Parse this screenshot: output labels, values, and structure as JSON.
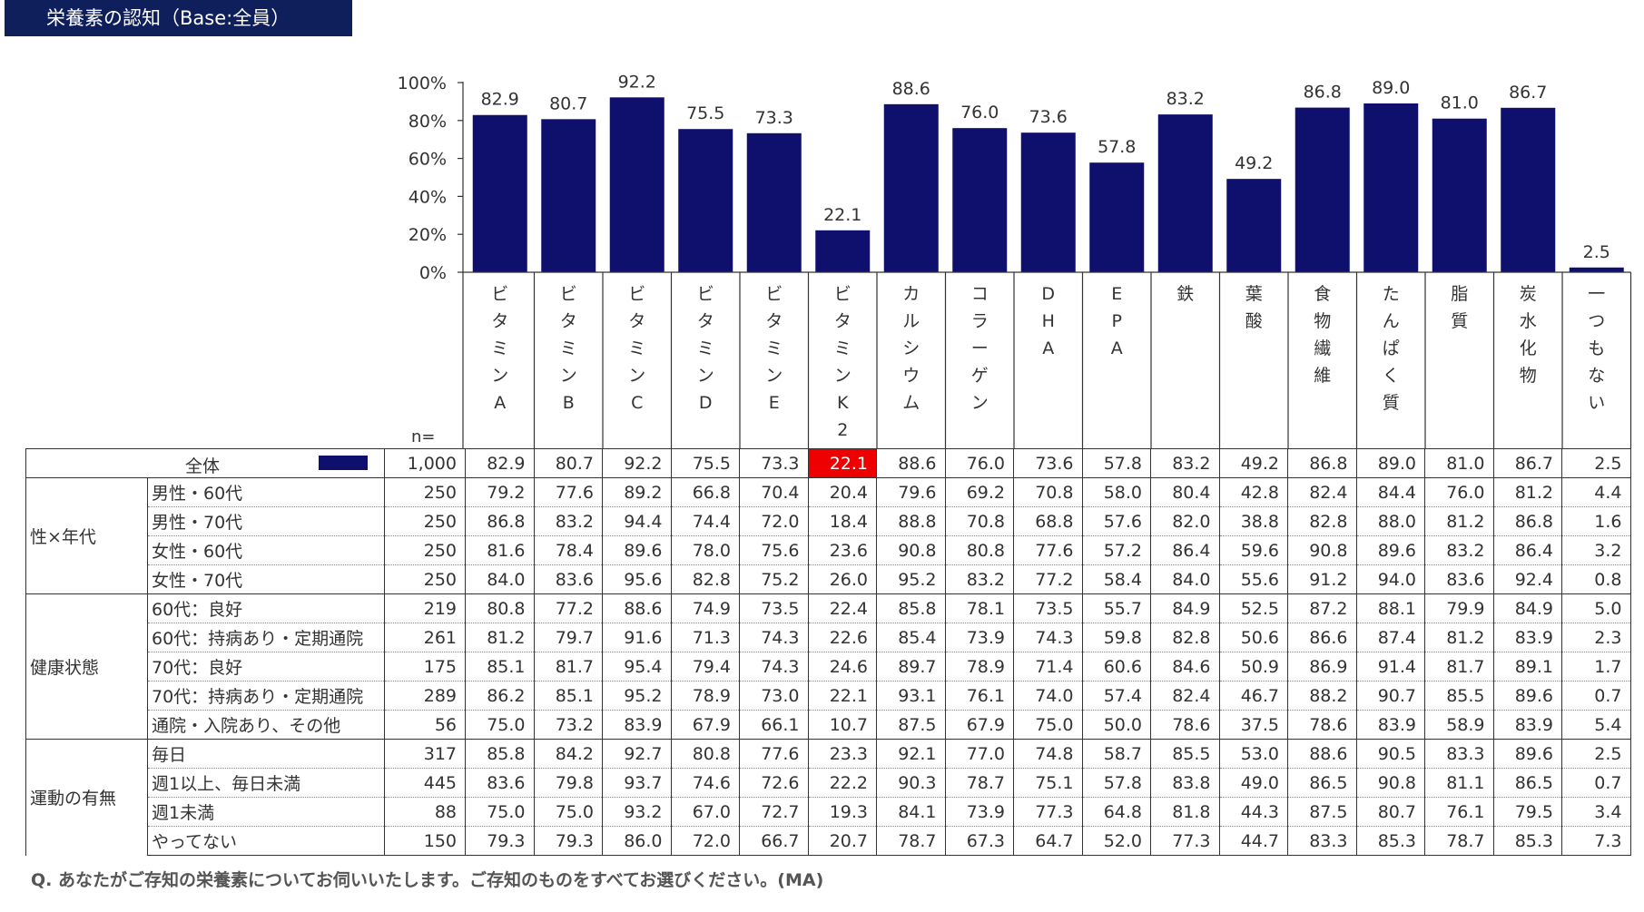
{
  "title": "栄養素の認知（Base:全員）",
  "question": "Q.  あなたがご存知の栄養素についてお伺いいたします。ご存知のものをすべてお選びください。(MA)",
  "colors": {
    "bar": "#0f0f6e",
    "title_bg": "#0f1f5c",
    "highlight": "#ee0000"
  },
  "chart_data": {
    "type": "bar",
    "categories": [
      "ビタミンA",
      "ビタミンB",
      "ビタミンC",
      "ビタミンD",
      "ビタミンE",
      "ビタミンK2",
      "カルシウム",
      "コラーゲン",
      "DHA",
      "EPA",
      "鉄",
      "葉酸",
      "食物繊維",
      "たんぱく質",
      "脂質",
      "炭水化物",
      "一つもない"
    ],
    "category_labels": [
      [
        "ビ",
        "タ",
        "ミ",
        "ン",
        "A"
      ],
      [
        "ビ",
        "タ",
        "ミ",
        "ン",
        "B"
      ],
      [
        "ビ",
        "タ",
        "ミ",
        "ン",
        "C"
      ],
      [
        "ビ",
        "タ",
        "ミ",
        "ン",
        "D"
      ],
      [
        "ビ",
        "タ",
        "ミ",
        "ン",
        "E"
      ],
      [
        "ビ",
        "タ",
        "ミ",
        "ン",
        "K",
        "2"
      ],
      [
        "カ",
        "ル",
        "シ",
        "ウ",
        "ム"
      ],
      [
        "コ",
        "ラ",
        "ー",
        "ゲ",
        "ン"
      ],
      [
        "D",
        "H",
        "A"
      ],
      [
        "E",
        "P",
        "A"
      ],
      [
        "鉄"
      ],
      [
        "葉",
        "酸"
      ],
      [
        "食",
        "物",
        "繊",
        "維"
      ],
      [
        "た",
        "ん",
        "ぱ",
        "く",
        "質"
      ],
      [
        "脂",
        "質"
      ],
      [
        "炭",
        "水",
        "化",
        "物"
      ],
      [
        "一",
        "つ",
        "も",
        "な",
        "い"
      ]
    ],
    "values": [
      82.9,
      80.7,
      92.2,
      75.5,
      73.3,
      22.1,
      88.6,
      76.0,
      73.6,
      57.8,
      83.2,
      49.2,
      86.8,
      89.0,
      81.0,
      86.7,
      2.5
    ],
    "value_labels": [
      "82.9",
      "80.7",
      "92.2",
      "75.5",
      "73.3",
      "22.1",
      "88.6",
      "76.0",
      "73.6",
      "57.8",
      "83.2",
      "49.2",
      "86.8",
      "89.0",
      "81.0",
      "86.7",
      "2.5"
    ],
    "ylim": [
      0,
      100
    ],
    "yticks": [
      "0%",
      "20%",
      "40%",
      "60%",
      "80%",
      "100%"
    ],
    "n_label": "n="
  },
  "table": {
    "overall": {
      "label": "全体",
      "n": "1,000",
      "values": [
        "82.9",
        "80.7",
        "92.2",
        "75.5",
        "73.3",
        "22.1",
        "88.6",
        "76.0",
        "73.6",
        "57.8",
        "83.2",
        "49.2",
        "86.8",
        "89.0",
        "81.0",
        "86.7",
        "2.5"
      ],
      "highlight_index": 5
    },
    "groups": [
      {
        "label": "性×年代",
        "rows": [
          {
            "label": "男性・60代",
            "n": "250",
            "values": [
              "79.2",
              "77.6",
              "89.2",
              "66.8",
              "70.4",
              "20.4",
              "79.6",
              "69.2",
              "70.8",
              "58.0",
              "80.4",
              "42.8",
              "82.4",
              "84.4",
              "76.0",
              "81.2",
              "4.4"
            ]
          },
          {
            "label": "男性・70代",
            "n": "250",
            "values": [
              "86.8",
              "83.2",
              "94.4",
              "74.4",
              "72.0",
              "18.4",
              "88.8",
              "70.8",
              "68.8",
              "57.6",
              "82.0",
              "38.8",
              "82.8",
              "88.0",
              "81.2",
              "86.8",
              "1.6"
            ]
          },
          {
            "label": "女性・60代",
            "n": "250",
            "values": [
              "81.6",
              "78.4",
              "89.6",
              "78.0",
              "75.6",
              "23.6",
              "90.8",
              "80.8",
              "77.6",
              "57.2",
              "86.4",
              "59.6",
              "90.8",
              "89.6",
              "83.2",
              "86.4",
              "3.2"
            ]
          },
          {
            "label": "女性・70代",
            "n": "250",
            "values": [
              "84.0",
              "83.6",
              "95.6",
              "82.8",
              "75.2",
              "26.0",
              "95.2",
              "83.2",
              "77.2",
              "58.4",
              "84.0",
              "55.6",
              "91.2",
              "94.0",
              "83.6",
              "92.4",
              "0.8"
            ]
          }
        ]
      },
      {
        "label": "健康状態",
        "rows": [
          {
            "label": "60代：良好",
            "n": "219",
            "values": [
              "80.8",
              "77.2",
              "88.6",
              "74.9",
              "73.5",
              "22.4",
              "85.8",
              "78.1",
              "73.5",
              "55.7",
              "84.9",
              "52.5",
              "87.2",
              "88.1",
              "79.9",
              "84.9",
              "5.0"
            ]
          },
          {
            "label": "60代：持病あり・定期通院",
            "n": "261",
            "values": [
              "81.2",
              "79.7",
              "91.6",
              "71.3",
              "74.3",
              "22.6",
              "85.4",
              "73.9",
              "74.3",
              "59.8",
              "82.8",
              "50.6",
              "86.6",
              "87.4",
              "81.2",
              "83.9",
              "2.3"
            ]
          },
          {
            "label": "70代：良好",
            "n": "175",
            "values": [
              "85.1",
              "81.7",
              "95.4",
              "79.4",
              "74.3",
              "24.6",
              "89.7",
              "78.9",
              "71.4",
              "60.6",
              "84.6",
              "50.9",
              "86.9",
              "91.4",
              "81.7",
              "89.1",
              "1.7"
            ]
          },
          {
            "label": "70代：持病あり・定期通院",
            "n": "289",
            "values": [
              "86.2",
              "85.1",
              "95.2",
              "78.9",
              "73.0",
              "22.1",
              "93.1",
              "76.1",
              "74.0",
              "57.4",
              "82.4",
              "46.7",
              "88.2",
              "90.7",
              "85.5",
              "89.6",
              "0.7"
            ]
          },
          {
            "label": "通院・入院あり、その他",
            "n": "56",
            "values": [
              "75.0",
              "73.2",
              "83.9",
              "67.9",
              "66.1",
              "10.7",
              "87.5",
              "67.9",
              "75.0",
              "50.0",
              "78.6",
              "37.5",
              "78.6",
              "83.9",
              "58.9",
              "83.9",
              "5.4"
            ]
          }
        ]
      },
      {
        "label": "運動の有無",
        "rows": [
          {
            "label": "毎日",
            "n": "317",
            "values": [
              "85.8",
              "84.2",
              "92.7",
              "80.8",
              "77.6",
              "23.3",
              "92.1",
              "77.0",
              "74.8",
              "58.7",
              "85.5",
              "53.0",
              "88.6",
              "90.5",
              "83.3",
              "89.6",
              "2.5"
            ]
          },
          {
            "label": "週1以上、毎日未満",
            "n": "445",
            "values": [
              "83.6",
              "79.8",
              "93.7",
              "74.6",
              "72.6",
              "22.2",
              "90.3",
              "78.7",
              "75.1",
              "57.8",
              "83.8",
              "49.0",
              "86.5",
              "90.8",
              "81.1",
              "86.5",
              "0.7"
            ]
          },
          {
            "label": "週1未満",
            "n": "88",
            "values": [
              "75.0",
              "75.0",
              "93.2",
              "67.0",
              "72.7",
              "19.3",
              "84.1",
              "73.9",
              "77.3",
              "64.8",
              "81.8",
              "44.3",
              "87.5",
              "80.7",
              "76.1",
              "79.5",
              "3.4"
            ]
          },
          {
            "label": "やってない",
            "n": "150",
            "values": [
              "79.3",
              "79.3",
              "86.0",
              "72.0",
              "66.7",
              "20.7",
              "78.7",
              "67.3",
              "64.7",
              "52.0",
              "77.3",
              "44.7",
              "83.3",
              "85.3",
              "78.7",
              "85.3",
              "7.3"
            ]
          }
        ]
      }
    ]
  }
}
